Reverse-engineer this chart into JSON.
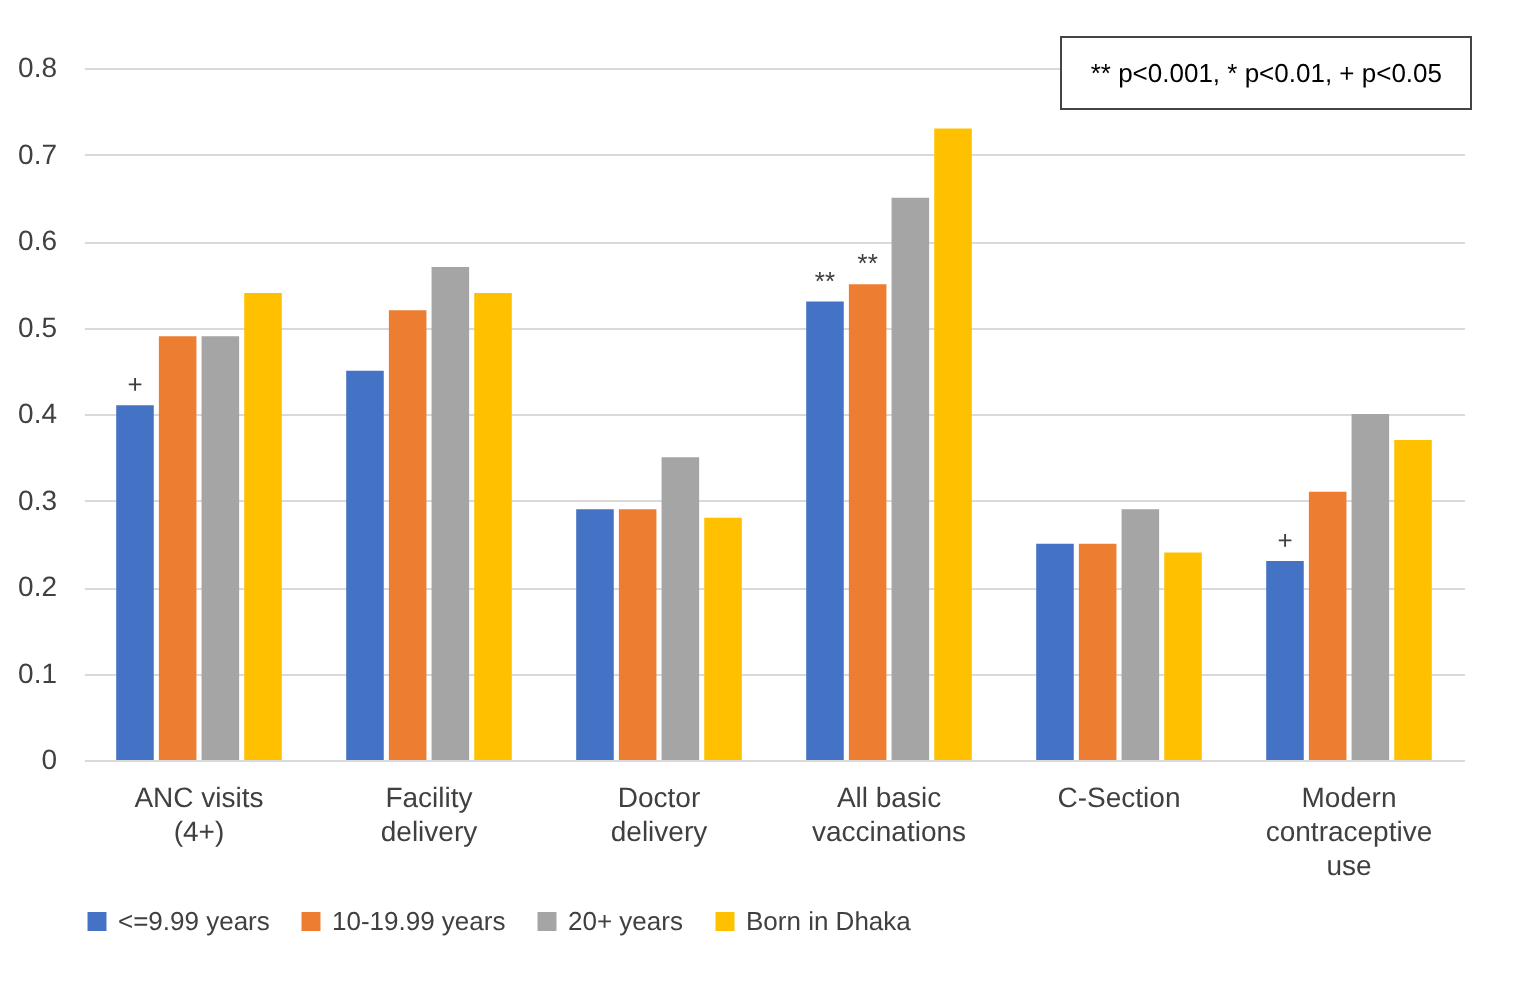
{
  "chart_data": {
    "type": "bar",
    "categories": [
      "ANC visits (4+)",
      "Facility delivery",
      "Doctor delivery",
      "All basic vaccinations",
      "C-Section",
      "Modern contraceptive use"
    ],
    "series": [
      {
        "name": "<=9.99 years",
        "color": "#4472c4",
        "values": [
          0.41,
          0.45,
          0.29,
          0.53,
          0.25,
          0.23
        ]
      },
      {
        "name": "10-19.99 years",
        "color": "#ed7d31",
        "values": [
          0.49,
          0.52,
          0.29,
          0.55,
          0.25,
          0.31
        ]
      },
      {
        "name": "20+ years",
        "color": "#a5a5a5",
        "values": [
          0.49,
          0.57,
          0.35,
          0.65,
          0.29,
          0.4
        ]
      },
      {
        "name": "Born in Dhaka",
        "color": "#ffc000",
        "values": [
          0.54,
          0.54,
          0.28,
          0.73,
          0.24,
          0.37
        ]
      }
    ],
    "ylim": [
      0,
      0.8
    ],
    "yticks": [
      0,
      0.1,
      0.2,
      0.3,
      0.4,
      0.5,
      0.6,
      0.7,
      0.8
    ],
    "grid": "y",
    "legend": "bottom",
    "annotations": [
      "** p<0.001, * p<0.01, + p<0.05",
      {
        "text": "+",
        "x": "ANC visits (4+)",
        "y": 0.41
      },
      {
        "text": "**",
        "x": "All basic vaccinations",
        "y": 0.53
      },
      {
        "text": "**",
        "x": "All basic vaccinations",
        "y": 0.55
      },
      {
        "text": "+",
        "x": "Modern contraceptive use",
        "y": 0.23
      }
    ]
  }
}
